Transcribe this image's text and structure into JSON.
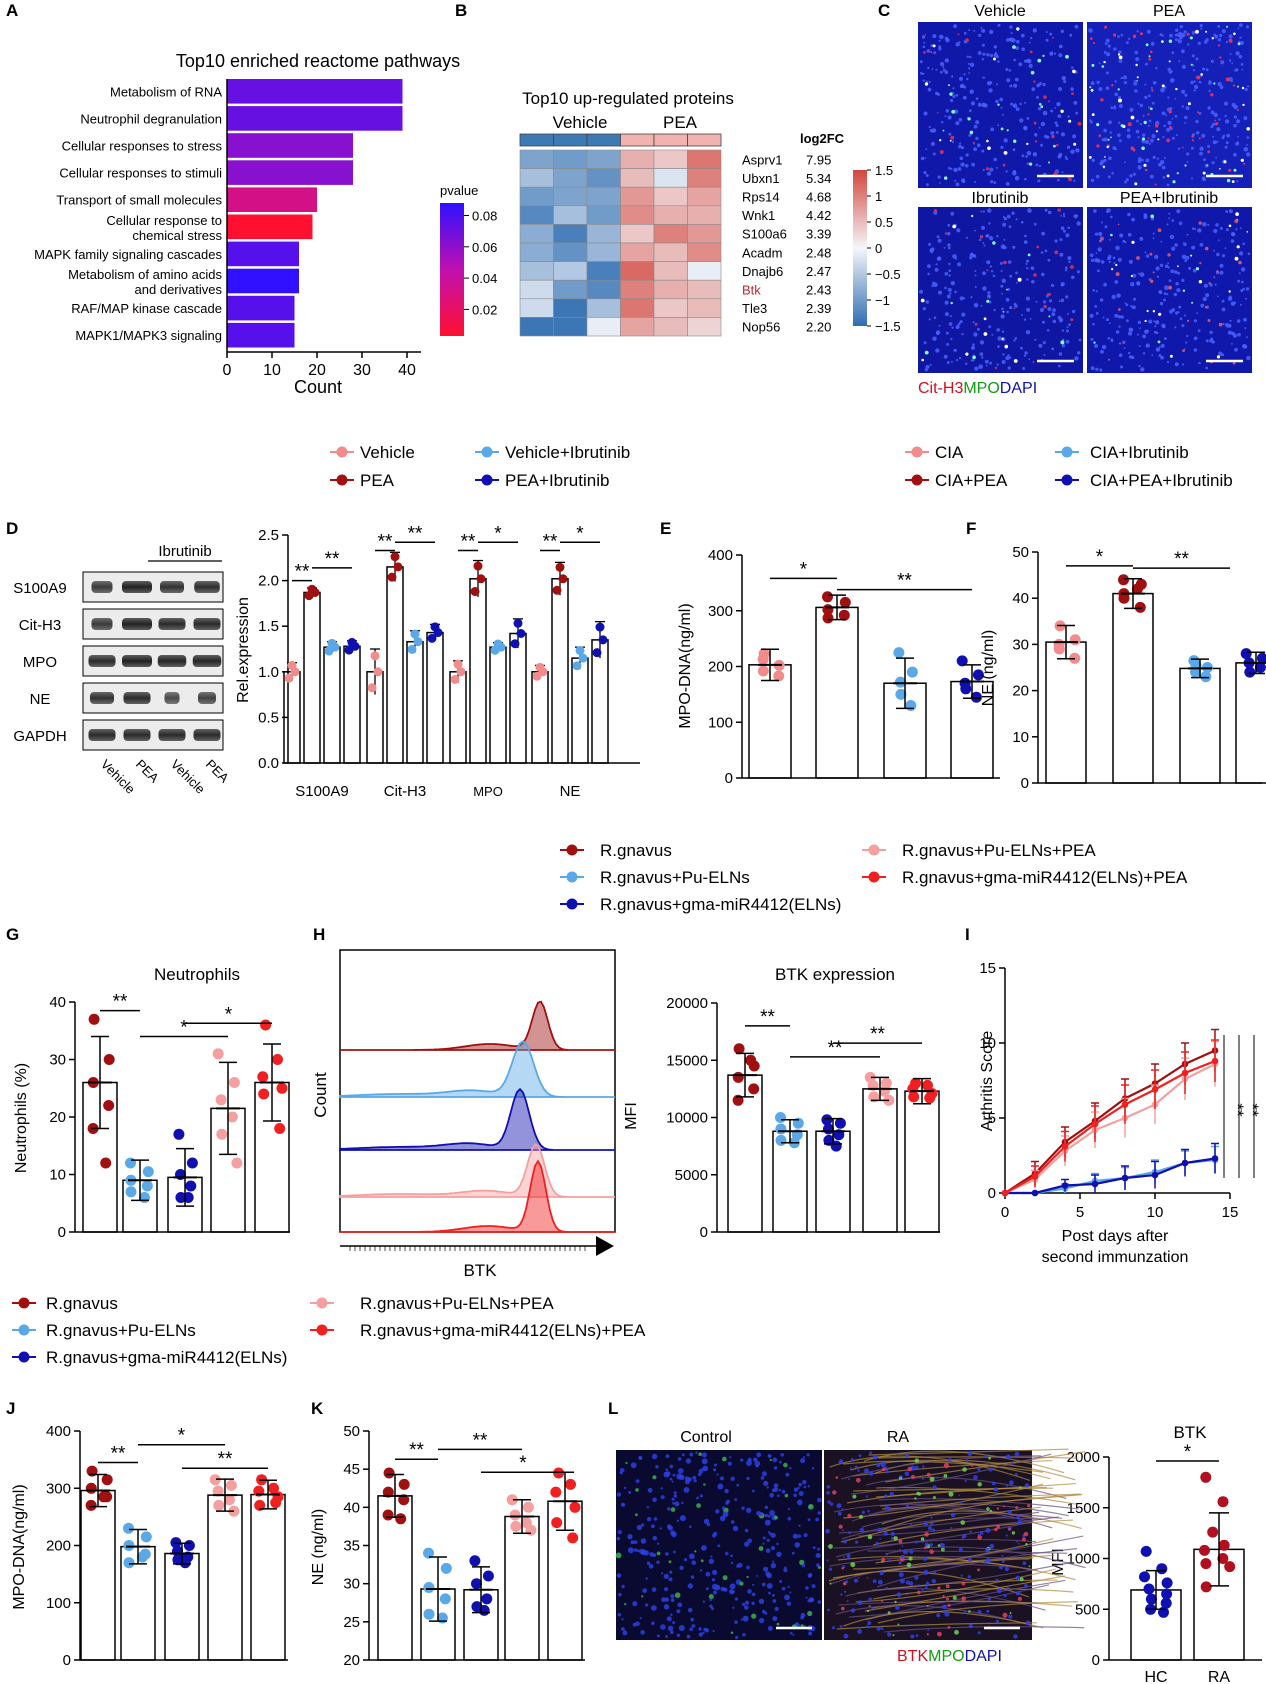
{
  "panel_letters": [
    "A",
    "B",
    "C",
    "D",
    "E",
    "F",
    "G",
    "H",
    "I",
    "J",
    "K",
    "L"
  ],
  "colors": {
    "vehicle": "#f08c8c",
    "pea": "#a01010",
    "vehicle_ibr": "#5aa8e8",
    "pea_ibr": "#1010b0",
    "rg": "#a01010",
    "rg_pu": "#5aa8e8",
    "rg_mir": "#1010b0",
    "rg_pu_pea": "#f5a0a0",
    "rg_mir_pea": "#f02020",
    "hc": "#1010b0",
    "ra": "#b01020"
  },
  "legend1": {
    "items": [
      "Vehicle",
      "PEA",
      "Vehicle+Ibrutinib",
      "PEA+Ibrutinib"
    ]
  },
  "legend2": {
    "items": [
      "CIA",
      "CIA+PEA",
      "CIA+Ibrutinib",
      "CIA+PEA+Ibrutinib"
    ]
  },
  "legend3": {
    "items": [
      "R.gnavus",
      "R.gnavus+Pu-ELNs",
      "R.gnavus+gma-miR4412(ELNs)",
      "R.gnavus+Pu-ELNs+PEA",
      "R.gnavus+gma-miR4412(ELNs)+PEA"
    ]
  },
  "legend4": {
    "items": [
      "R.gnavus",
      "R.gnavus+Pu-ELNs",
      "R.gnavus+gma-miR4412(ELNs)",
      "R.gnavus+Pu-ELNs+PEA",
      "R.gnavus+gma-miR4412(ELNs)+PEA"
    ]
  },
  "panelC": {
    "labels": [
      "Vehicle",
      "PEA",
      "Ibrutinib",
      "PEA+Ibrutinib"
    ],
    "stain": [
      "Cit-H3",
      "MPO",
      "DAPI"
    ]
  },
  "panelD": {
    "blot_rows": [
      "S100A9",
      "Cit-H3",
      "MPO",
      "NE",
      "GAPDH"
    ],
    "blot_treatment": "Ibrutinib",
    "lanes": [
      "Vehicle",
      "PEA",
      "Vehicle",
      "PEA"
    ],
    "significance": [
      "**",
      "**",
      "**",
      "**",
      "**",
      "*",
      "**",
      "*"
    ]
  },
  "panelL": {
    "images": [
      "Control",
      "RA"
    ],
    "stain": [
      "BTK",
      "MPO",
      "DAPI"
    ]
  },
  "panelH": {
    "xlabel": "BTK",
    "ylabel": "Count"
  },
  "chart_data": [
    {
      "id": "A",
      "type": "bar",
      "title": "Top10 enriched reactome pathways",
      "xlabel": "Count",
      "ylabel": "",
      "categories": [
        "Metabolism of RNA",
        "Neutrophil degranulation",
        "Cellular responses to stress",
        "Cellular responses to stimuli",
        "Transport of small molecules",
        "Cellular response to chemical stress",
        "MAPK family signaling cascades",
        "Metabolism of amino acids and derivatives",
        "RAF/MAP kinase cascade",
        "MAPK1/MAPK3 signaling"
      ],
      "labels": [
        [
          "Metabolism of RNA"
        ],
        [
          "Neutrophil degranulation"
        ],
        [
          "Cellular responses to stress"
        ],
        [
          "Cellular responses to stimuli"
        ],
        [
          "Transport of small molecules"
        ],
        [
          "Cellular response to",
          "chemical stress"
        ],
        [
          "MAPK family signaling cascades"
        ],
        [
          "Metabolism of amino acids",
          "and derivatives"
        ],
        [
          "RAF/MAP kinase cascade"
        ],
        [
          "MAPK1/MAPK3 signaling"
        ]
      ],
      "values": [
        39,
        39,
        28,
        28,
        20,
        19,
        16,
        16,
        15,
        15
      ],
      "pvalues": [
        0.072,
        0.072,
        0.062,
        0.062,
        0.032,
        0.003,
        0.077,
        0.088,
        0.077,
        0.077
      ],
      "xlim": [
        0,
        40
      ],
      "xticks": [
        0,
        10,
        20,
        30,
        40
      ],
      "colorbar": {
        "title": "pvalue",
        "ticks": [
          0.02,
          0.04,
          0.06,
          0.08
        ],
        "range": [
          0.003,
          0.088
        ]
      }
    },
    {
      "id": "B",
      "type": "heatmap",
      "title": "Top10 up-regulated proteins",
      "groups": [
        "Vehicle",
        "PEA"
      ],
      "proteins": [
        "Asprv1",
        "Ubxn1",
        "Rps14",
        "Wnk1",
        "S100a6",
        "Acadm",
        "Dnajb6",
        "Btk",
        "Tle3",
        "Nop56"
      ],
      "log2fc_label": "log2FC",
      "log2fc": [
        "7.95",
        "5.34",
        "4.68",
        "4.42",
        "3.39",
        "2.48",
        "2.47",
        "2.43",
        "2.39",
        "2.20"
      ],
      "matrix": [
        [
          -0.9,
          -1.0,
          -0.9,
          0.6,
          0.4,
          1.1
        ],
        [
          -0.6,
          -0.9,
          -1.1,
          0.5,
          -0.2,
          1.0
        ],
        [
          -1.0,
          -0.9,
          -0.9,
          0.8,
          0.4,
          0.7
        ],
        [
          -1.2,
          -0.6,
          -1.0,
          0.9,
          0.6,
          0.6
        ],
        [
          -0.8,
          -1.3,
          -0.7,
          0.4,
          1.0,
          0.8
        ],
        [
          -0.8,
          -1.1,
          -0.7,
          0.7,
          0.5,
          0.9
        ],
        [
          -0.6,
          -0.5,
          -1.3,
          1.2,
          0.5,
          -0.1
        ],
        [
          -0.3,
          -1.0,
          -1.2,
          1.0,
          0.6,
          0.5
        ],
        [
          -0.3,
          -1.4,
          -0.6,
          1.1,
          0.4,
          0.5
        ],
        [
          -1.4,
          -1.4,
          -0.1,
          0.7,
          0.5,
          0.3
        ]
      ],
      "colorbar_ticks": [
        "1.5",
        "1",
        "0.5",
        "0",
        "−0.5",
        "−1",
        "−1.5"
      ]
    },
    {
      "id": "D",
      "type": "bar",
      "ylabel": "Rel.expression",
      "categories": [
        "S100A9",
        "Cit-H3",
        "MPO",
        "NE"
      ],
      "ylim": [
        0,
        2.5
      ],
      "yticks": [
        "0.0",
        "0.5",
        "1.0",
        "1.5",
        "2.0",
        "2.5"
      ],
      "series": [
        {
          "name": "Vehicle",
          "values": [
            1.0,
            1.0,
            1.0,
            1.0
          ],
          "errors": [
            0.1,
            0.25,
            0.12,
            0.07
          ]
        },
        {
          "name": "PEA",
          "values": [
            1.87,
            2.15,
            2.02,
            2.02
          ],
          "errors": [
            0.05,
            0.16,
            0.2,
            0.18
          ]
        },
        {
          "name": "Vehicle+Ibrutinib",
          "values": [
            1.27,
            1.33,
            1.27,
            1.15
          ],
          "errors": [
            0.06,
            0.12,
            0.05,
            0.12
          ]
        },
        {
          "name": "PEA+Ibrutinib",
          "values": [
            1.28,
            1.43,
            1.42,
            1.35
          ],
          "errors": [
            0.06,
            0.09,
            0.16,
            0.2
          ]
        }
      ]
    },
    {
      "id": "E",
      "type": "scatter",
      "ylabel": "MPO-DNA(ng/ml)",
      "ylim": [
        0,
        400
      ],
      "yticks": [
        0,
        100,
        200,
        300,
        400
      ],
      "groups": [
        {
          "name": "CIA",
          "mean": 203,
          "sd": 28,
          "points": [
            223,
            202,
            192,
            183,
            213
          ]
        },
        {
          "name": "CIA+PEA",
          "mean": 306,
          "sd": 22,
          "points": [
            325,
            315,
            302,
            292,
            287
          ]
        },
        {
          "name": "CIA+Ibrutinib",
          "mean": 170,
          "sd": 45,
          "points": [
            225,
            190,
            172,
            130,
            150
          ]
        },
        {
          "name": "CIA+PEA+Ibrutinib",
          "mean": 173,
          "sd": 30,
          "points": [
            210,
            185,
            170,
            145,
            160
          ]
        }
      ],
      "significance": [
        "*",
        "**"
      ]
    },
    {
      "id": "F",
      "type": "scatter",
      "ylabel": "NE (ng/ml)",
      "ylim": [
        0,
        50
      ],
      "yticks": [
        0,
        10,
        20,
        30,
        40,
        50
      ],
      "groups": [
        {
          "name": "CIA",
          "mean": 30.5,
          "sd": 3.6,
          "points": [
            34,
            31,
            29,
            27,
            30
          ]
        },
        {
          "name": "CIA+PEA",
          "mean": 41,
          "sd": 3.2,
          "points": [
            44,
            43,
            41,
            38,
            40,
            42
          ]
        },
        {
          "name": "CIA+Ibrutinib",
          "mean": 24.8,
          "sd": 2.0,
          "points": [
            26.5,
            25,
            24,
            23,
            25.5
          ]
        },
        {
          "name": "CIA+PEA+Ibrutinib",
          "mean": 26,
          "sd": 2.3,
          "points": [
            28,
            27,
            26,
            25,
            24
          ]
        }
      ],
      "significance": [
        "*",
        "**"
      ]
    },
    {
      "id": "G",
      "type": "scatter",
      "title": "Neutrophils",
      "ylabel": "Neutrophils (%)",
      "ylim": [
        0,
        40
      ],
      "yticks": [
        0,
        10,
        20,
        30,
        40
      ],
      "groups": [
        {
          "name": "R.gnavus",
          "mean": 26,
          "sd": 8,
          "points": [
            37,
            30,
            26,
            22,
            18,
            12
          ]
        },
        {
          "name": "R.gnavus+Pu-ELNs",
          "mean": 9,
          "sd": 3.5,
          "points": [
            12,
            10.5,
            9,
            8,
            7,
            6
          ]
        },
        {
          "name": "R.gnavus+gma-miR4412(ELNs)",
          "mean": 9.5,
          "sd": 5,
          "points": [
            17,
            12,
            10,
            8,
            6,
            6
          ]
        },
        {
          "name": "R.gnavus+Pu-ELNs+PEA",
          "mean": 21.5,
          "sd": 8,
          "points": [
            31,
            26,
            23,
            20,
            17,
            12
          ]
        },
        {
          "name": "R.gnavus+gma-miR4412(ELNs)+PEA",
          "mean": 26,
          "sd": 6.7,
          "points": [
            36,
            30,
            27,
            25,
            24,
            18
          ]
        }
      ],
      "significance": [
        "**",
        "*",
        "*"
      ]
    },
    {
      "id": "H",
      "type": "bar",
      "title": "BTK  expression",
      "ylabel": "MFI",
      "ylim": [
        0,
        20000
      ],
      "yticks": [
        0,
        5000,
        10000,
        15000,
        20000
      ],
      "groups": [
        {
          "name": "R.gnavus",
          "mean": 13700,
          "sd": 1900,
          "points": [
            16000,
            14500,
            13500,
            12500,
            11500,
            15000
          ]
        },
        {
          "name": "R.gnavus+Pu-ELNs",
          "mean": 8800,
          "sd": 1000,
          "points": [
            10000,
            9500,
            9000,
            8500,
            8000,
            7800
          ]
        },
        {
          "name": "R.gnavus+gma-miR4412(ELNs)",
          "mean": 8800,
          "sd": 1100,
          "points": [
            9800,
            9500,
            9000,
            8500,
            8000,
            7500
          ]
        },
        {
          "name": "R.gnavus+Pu-ELNs+PEA",
          "mean": 12500,
          "sd": 1000,
          "points": [
            13500,
            13000,
            12800,
            12300,
            11800,
            11500
          ]
        },
        {
          "name": "R.gnavus+gma-miR4412(ELNs)+PEA",
          "mean": 12300,
          "sd": 1100,
          "points": [
            13000,
            12800,
            12500,
            12100,
            11800,
            11700
          ]
        }
      ],
      "significance": [
        "**",
        "**",
        "**"
      ]
    },
    {
      "id": "I",
      "type": "line",
      "xlabel": "Post days after second immunzation",
      "ylabel": "Arthritis Score",
      "xlim": [
        0,
        15
      ],
      "ylim": [
        0,
        15
      ],
      "xticks": [
        0,
        5,
        10,
        15
      ],
      "yticks": [
        0,
        5,
        10,
        15
      ],
      "x": [
        0,
        2,
        4,
        6,
        8,
        10,
        12,
        14
      ],
      "series": [
        {
          "name": "R.gnavus",
          "values": [
            0,
            1.3,
            3.4,
            4.8,
            6.3,
            7.3,
            8.6,
            9.5
          ],
          "errors": [
            0,
            0.8,
            1.0,
            1.2,
            1.3,
            1.3,
            1.4,
            1.4
          ]
        },
        {
          "name": "R.gnavus+Pu-ELNs",
          "values": [
            0,
            0,
            0.3,
            0.8,
            1.0,
            1.4,
            2.0,
            2.2
          ],
          "errors": [
            0,
            0,
            0.3,
            0.5,
            0.7,
            0.8,
            0.8,
            0.9
          ]
        },
        {
          "name": "R.gnavus+gma-miR4412(ELNs)",
          "values": [
            0,
            0,
            0.5,
            0.6,
            1.0,
            1.2,
            2.0,
            2.3
          ],
          "errors": [
            0,
            0,
            0.4,
            0.6,
            0.8,
            0.9,
            0.9,
            1.0
          ]
        },
        {
          "name": "R.gnavus+Pu-ELNs+PEA",
          "values": [
            0,
            0.9,
            2.8,
            4.2,
            5.0,
            5.9,
            7.6,
            8.6
          ],
          "errors": [
            0,
            0.6,
            1.0,
            1.2,
            1.3,
            1.3,
            1.4,
            1.5
          ]
        },
        {
          "name": "R.gnavus+gma-miR4412(ELNs)+PEA",
          "values": [
            0,
            1.1,
            3.1,
            4.6,
            5.9,
            6.9,
            8.0,
            8.8
          ],
          "errors": [
            0,
            0.7,
            1.0,
            1.2,
            1.3,
            1.3,
            1.4,
            1.4
          ]
        }
      ],
      "significance": [
        "**",
        "**",
        "**"
      ]
    },
    {
      "id": "J",
      "type": "scatter",
      "ylabel": "MPO-DNA(ng/ml)",
      "ylim": [
        0,
        400
      ],
      "yticks": [
        0,
        100,
        200,
        300,
        400
      ],
      "groups": [
        {
          "name": "R.gnavus",
          "mean": 296,
          "sd": 28,
          "points": [
            330,
            315,
            300,
            285,
            270,
            285
          ]
        },
        {
          "name": "R.gnavus+Pu-ELNs",
          "mean": 198,
          "sd": 30,
          "points": [
            230,
            215,
            200,
            185,
            170,
            180
          ]
        },
        {
          "name": "R.gnavus+gma-miR4412(ELNs)",
          "mean": 186,
          "sd": 18,
          "points": [
            205,
            200,
            190,
            180,
            175,
            170
          ]
        },
        {
          "name": "R.gnavus+Pu-ELNs+PEA",
          "mean": 288,
          "sd": 28,
          "points": [
            315,
            305,
            295,
            280,
            270,
            260
          ]
        },
        {
          "name": "R.gnavus+gma-miR4412(ELNs)+PEA",
          "mean": 289,
          "sd": 25,
          "points": [
            315,
            300,
            295,
            285,
            270,
            275
          ]
        }
      ],
      "significance": [
        "**",
        "*",
        "**"
      ]
    },
    {
      "id": "K",
      "type": "scatter",
      "ylabel": "NE (ng/ml)",
      "ylim": [
        20,
        50
      ],
      "yticks": [
        20,
        25,
        30,
        35,
        40,
        45,
        50
      ],
      "groups": [
        {
          "name": "R.gnavus",
          "mean": 41.5,
          "sd": 2.8,
          "points": [
            44.5,
            43,
            42,
            41,
            39,
            38.5
          ]
        },
        {
          "name": "R.gnavus+Pu-ELNs",
          "mean": 29.3,
          "sd": 4.2,
          "points": [
            34,
            32,
            29.5,
            28,
            26,
            25.5
          ]
        },
        {
          "name": "R.gnavus+gma-miR4412(ELNs)",
          "mean": 29.2,
          "sd": 3.0,
          "points": [
            33,
            31,
            30,
            28,
            27,
            26.5
          ]
        },
        {
          "name": "R.gnavus+Pu-ELNs+PEA",
          "mean": 38.8,
          "sd": 2.2,
          "points": [
            41,
            40,
            39,
            38,
            37.5,
            37
          ]
        },
        {
          "name": "R.gnavus+gma-miR4412(ELNs)+PEA",
          "mean": 40.8,
          "sd": 3.8,
          "points": [
            44.5,
            43,
            42,
            40,
            38,
            36
          ]
        }
      ],
      "significance": [
        "**",
        "**",
        "*"
      ]
    },
    {
      "id": "L",
      "type": "scatter",
      "title": "BTK",
      "ylabel": "MFI",
      "categories": [
        "HC",
        "RA"
      ],
      "ylim": [
        0,
        2000
      ],
      "yticks": [
        0,
        500,
        1000,
        1500,
        2000
      ],
      "groups": [
        {
          "name": "HC",
          "mean": 690,
          "sd": 190,
          "points": [
            1070,
            900,
            820,
            760,
            700,
            650,
            600,
            560,
            500,
            470
          ]
        },
        {
          "name": "RA",
          "mean": 1090,
          "sd": 360,
          "points": [
            1800,
            1560,
            1260,
            1130,
            1080,
            1000,
            950,
            920,
            720
          ]
        }
      ],
      "significance": [
        "*"
      ]
    }
  ]
}
